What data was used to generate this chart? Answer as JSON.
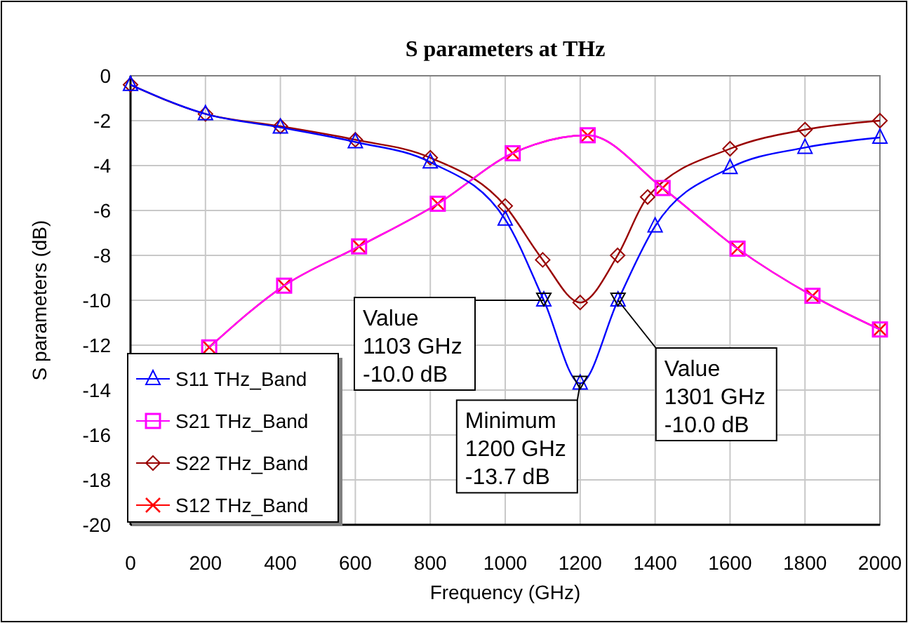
{
  "chart_data": {
    "type": "line",
    "title": "S parameters at THz",
    "xlabel": "Frequency (GHz)",
    "ylabel": "S parameters (dB)",
    "xlim": [
      0,
      2000
    ],
    "xticks": [
      0,
      200,
      400,
      600,
      800,
      1000,
      1200,
      1400,
      1600,
      1800,
      2000
    ],
    "ylim": [
      -20,
      0
    ],
    "yticks": [
      0,
      -2,
      -4,
      -6,
      -8,
      -10,
      -12,
      -14,
      -16,
      -18,
      -20
    ],
    "grid": true,
    "legend": "bottom left",
    "line_style": "solid",
    "series": [
      {
        "name": "S11 THz_Band",
        "color": "#0000ff",
        "marker": "triangle",
        "x": [
          0,
          200,
          400,
          600,
          800,
          1000,
          1103,
          1200,
          1301,
          1400,
          1600,
          1800,
          2000
        ],
        "values": [
          -0.4,
          -1.7,
          -2.3,
          -2.95,
          -3.85,
          -6.4,
          -10.0,
          -13.7,
          -10.0,
          -6.7,
          -4.1,
          -3.2,
          -2.75
        ]
      },
      {
        "name": "S21 THz_Band",
        "color": "#ff00ff",
        "marker": "square",
        "x": [
          210,
          410,
          610,
          820,
          1020,
          1220,
          1420,
          1620,
          1820,
          2000
        ],
        "values": [
          -12.1,
          -9.35,
          -7.6,
          -5.7,
          -3.45,
          -2.65,
          -5.0,
          -7.7,
          -9.8,
          -11.3
        ]
      },
      {
        "name": "S22 THz_Band",
        "color": "#990000",
        "marker": "diamond",
        "x": [
          0,
          200,
          400,
          600,
          800,
          1000,
          1100,
          1200,
          1300,
          1380,
          1600,
          1800,
          2000
        ],
        "values": [
          -0.4,
          -1.7,
          -2.25,
          -2.85,
          -3.65,
          -5.8,
          -8.2,
          -10.1,
          -8.0,
          -5.4,
          -3.25,
          -2.4,
          -2.0
        ]
      },
      {
        "name": "S12 THz_Band",
        "color": "#ff0000",
        "marker": "cross",
        "x": [
          210,
          410,
          610,
          820,
          1020,
          1220,
          1420,
          1620,
          1820,
          2000
        ],
        "values": [
          -12.1,
          -9.35,
          -7.6,
          -5.7,
          -3.45,
          -2.65,
          -5.0,
          -7.7,
          -9.8,
          -11.3
        ]
      }
    ],
    "annotations": [
      {
        "text": "Value\n1103 GHz\n-10.0 dB",
        "x": 1103,
        "y": -10.0
      },
      {
        "text": "Value\n1301 GHz\n-10.0 dB",
        "x": 1301,
        "y": -10.0
      },
      {
        "text": "Minimum\n1200 GHz\n-13.7 dB",
        "x": 1200,
        "y": -13.7
      }
    ]
  }
}
